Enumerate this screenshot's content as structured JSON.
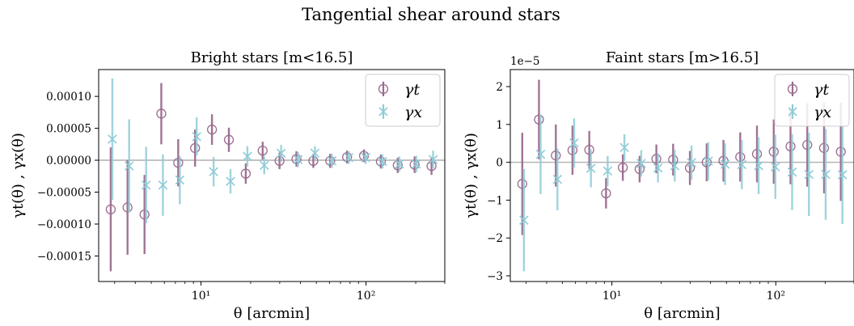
{
  "suptitle": "Tangential shear around stars",
  "colors": {
    "gt": "#9b6b8e",
    "gx": "#8fcbd6",
    "zero_line": "#b5b5b5",
    "axis": "#000000"
  },
  "chart_data": [
    {
      "type": "scatter",
      "title": "Bright stars [m<16.5]",
      "xlabel": "θ [arcmin]",
      "ylabel": "γt(θ) , γx(θ)",
      "xscale": "log",
      "xlim": [
        2.4,
        300
      ],
      "ylim": [
        -0.00019,
        0.000142
      ],
      "offset_text": "",
      "xticks": [
        {
          "value": 10,
          "label": "10¹"
        },
        {
          "value": 100,
          "label": "10²"
        }
      ],
      "yticks": [
        {
          "value": 0.0001,
          "label": "0.00010"
        },
        {
          "value": 5e-05,
          "label": "0.00005"
        },
        {
          "value": 0,
          "label": "0.00000"
        },
        {
          "value": -5e-05,
          "label": "−0.00005"
        },
        {
          "value": -0.0001,
          "label": "−0.00010"
        },
        {
          "value": -0.00015,
          "label": "−0.00015"
        }
      ],
      "x": [
        2.84,
        3.59,
        4.55,
        5.75,
        7.28,
        9.21,
        11.66,
        14.76,
        18.68,
        23.64,
        29.92,
        37.87,
        47.93,
        60.66,
        76.77,
        97.16,
        122.97,
        155.63,
        196.96,
        249.27
      ],
      "legend": {
        "location": "upper right",
        "entries": [
          "γt",
          "γx"
        ]
      },
      "series": [
        {
          "name": "γt",
          "marker": "circle",
          "values": [
            -7.7e-05,
            -7.4e-05,
            -8.5e-05,
            7.3e-05,
            -4e-06,
            1.9e-05,
            4.8e-05,
            3.2e-05,
            -2.1e-05,
            1.5e-05,
            -1e-06,
            2e-06,
            -1e-06,
            -1e-06,
            5e-06,
            7e-06,
            -2e-06,
            -8e-06,
            -7e-06,
            -9e-06
          ],
          "errors": [
            9.7e-05,
            7.4e-05,
            6.2e-05,
            4.8e-05,
            3.7e-05,
            2.9e-05,
            2.4e-05,
            1.9e-05,
            1.6e-05,
            1.4e-05,
            1.3e-05,
            1.2e-05,
            1.1e-05,
            1.1e-05,
            1e-05,
            1e-05,
            1.1e-05,
            1.2e-05,
            1.3e-05,
            1.4e-05
          ]
        },
        {
          "name": "γx",
          "marker": "x",
          "values": [
            3.3e-05,
            -9e-06,
            -3.9e-05,
            -3.9e-05,
            -3.1e-05,
            3.7e-05,
            -1.8e-05,
            -3.3e-05,
            6e-06,
            -8e-06,
            1.1e-05,
            1e-06,
            1.1e-05,
            -1e-06,
            4e-06,
            4e-06,
            -2e-06,
            -6e-06,
            -6e-06,
            1e-06
          ],
          "errors": [
            9.5e-05,
            7.3e-05,
            6e-05,
            4.8e-05,
            3.8e-05,
            3e-05,
            2.3e-05,
            1.9e-05,
            1.6e-05,
            1.4e-05,
            1.3e-05,
            1.2e-05,
            1.1e-05,
            1.1e-05,
            1e-05,
            1e-05,
            1.1e-05,
            1.2e-05,
            1.3e-05,
            1.4e-05
          ]
        }
      ]
    },
    {
      "type": "scatter",
      "title": "Faint stars [m>16.5]",
      "xlabel": "θ [arcmin]",
      "ylabel": "γt(θ) , γx(θ)",
      "xscale": "log",
      "xlim": [
        2.4,
        300
      ],
      "ylim": [
        -3.15,
        2.45
      ],
      "offset_text": "1e−5",
      "xticks": [
        {
          "value": 10,
          "label": "10¹"
        },
        {
          "value": 100,
          "label": "10²"
        }
      ],
      "yticks": [
        {
          "value": 2,
          "label": "2"
        },
        {
          "value": 1,
          "label": "1"
        },
        {
          "value": 0,
          "label": "0"
        },
        {
          "value": -1,
          "label": "−1"
        },
        {
          "value": -2,
          "label": "−2"
        },
        {
          "value": -3,
          "label": "−3"
        }
      ],
      "x": [
        2.84,
        3.59,
        4.55,
        5.75,
        7.28,
        9.21,
        11.66,
        14.76,
        18.68,
        23.64,
        29.92,
        37.87,
        47.93,
        60.66,
        76.77,
        97.16,
        122.97,
        155.63,
        196.96,
        249.27
      ],
      "legend": {
        "location": "upper right",
        "entries": [
          "γt",
          "γx"
        ]
      },
      "series": [
        {
          "name": "γt",
          "marker": "circle",
          "values": [
            -0.57,
            1.13,
            0.18,
            0.32,
            0.33,
            -0.82,
            -0.14,
            -0.18,
            0.09,
            0.07,
            -0.15,
            0.0,
            0.04,
            0.14,
            0.22,
            0.28,
            0.42,
            0.46,
            0.38,
            0.28
          ],
          "errors": [
            1.35,
            1.05,
            0.82,
            0.65,
            0.5,
            0.4,
            0.35,
            0.35,
            0.38,
            0.42,
            0.45,
            0.5,
            0.55,
            0.65,
            0.75,
            0.85,
            1.0,
            1.1,
            1.2,
            1.3
          ]
        },
        {
          "name": "γx",
          "marker": "x",
          "values": [
            -1.53,
            0.21,
            -0.45,
            0.51,
            -0.16,
            -0.23,
            0.39,
            -0.03,
            -0.15,
            -0.09,
            -0.01,
            0.03,
            -0.05,
            -0.06,
            -0.09,
            -0.12,
            -0.26,
            -0.32,
            -0.32,
            -0.33
          ],
          "errors": [
            1.35,
            1.05,
            0.82,
            0.65,
            0.5,
            0.4,
            0.35,
            0.35,
            0.38,
            0.42,
            0.45,
            0.5,
            0.55,
            0.65,
            0.75,
            0.85,
            1.0,
            1.1,
            1.2,
            1.3
          ]
        }
      ]
    }
  ]
}
